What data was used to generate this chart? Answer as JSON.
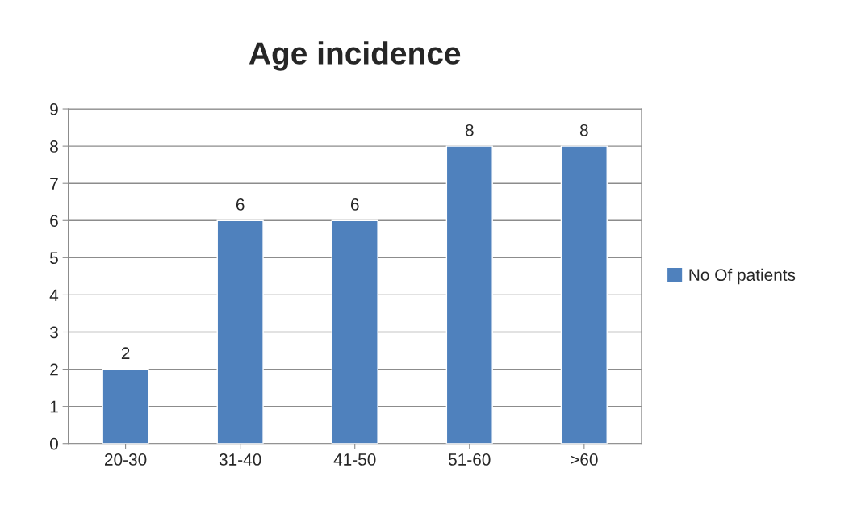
{
  "chart_data": {
    "type": "bar",
    "title": "Age incidence",
    "categories": [
      "20-30",
      "31-40",
      "41-50",
      "51-60",
      ">60"
    ],
    "series": [
      {
        "name": "No Of patients",
        "color": "#4f81bd",
        "values": [
          2,
          6,
          6,
          8,
          8
        ]
      }
    ],
    "ylim": [
      0,
      9
    ],
    "yticks": [
      0,
      1,
      2,
      3,
      4,
      5,
      6,
      7,
      8,
      9
    ],
    "grid": "y",
    "legend": "right",
    "data_labels": true
  }
}
